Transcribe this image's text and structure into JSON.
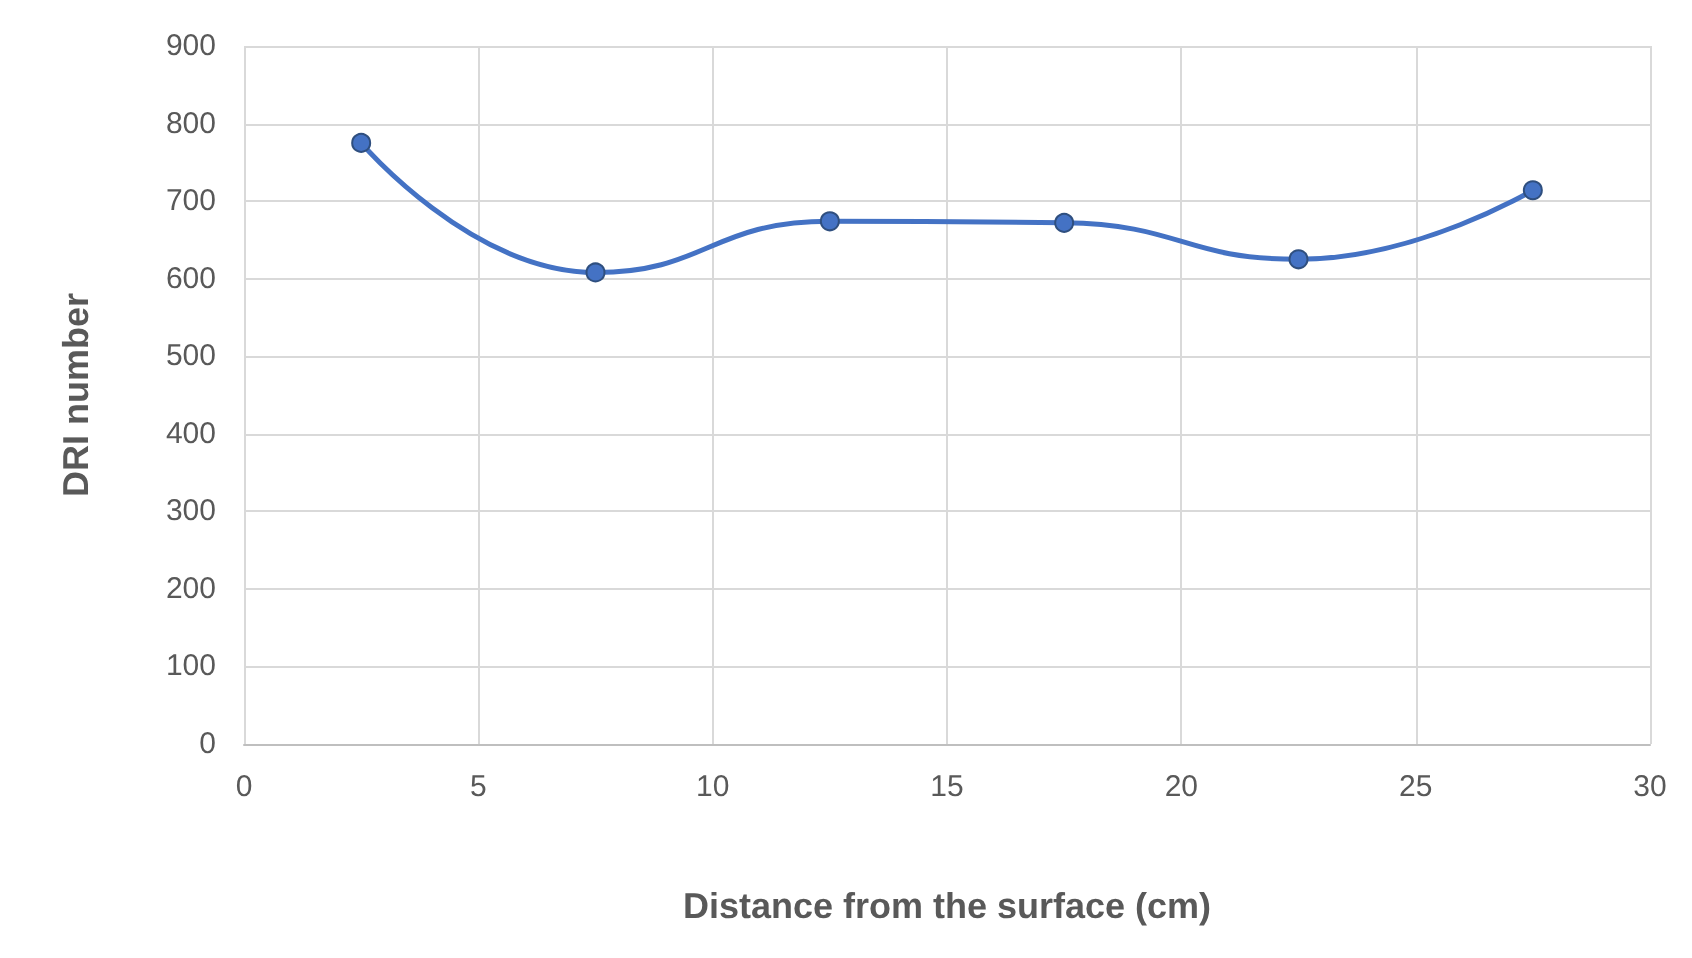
{
  "chart_data": {
    "type": "line",
    "xlabel": "Distance from the surface (cm)",
    "ylabel": "DRI number",
    "x": [
      2.5,
      7.5,
      12.5,
      17.5,
      22.5,
      27.5
    ],
    "series": [
      {
        "color": "#4472c4",
        "values": [
          775,
          608,
          674,
          672,
          625,
          714
        ]
      }
    ],
    "xlim": [
      0,
      30
    ],
    "xticks": [
      0,
      5,
      10,
      15,
      20,
      25,
      30
    ],
    "ylim": [
      0,
      900
    ],
    "yticks": [
      0,
      100,
      200,
      300,
      400,
      500,
      600,
      700,
      800,
      900
    ],
    "grid": true,
    "marker": "circle",
    "line_style": "solid"
  }
}
